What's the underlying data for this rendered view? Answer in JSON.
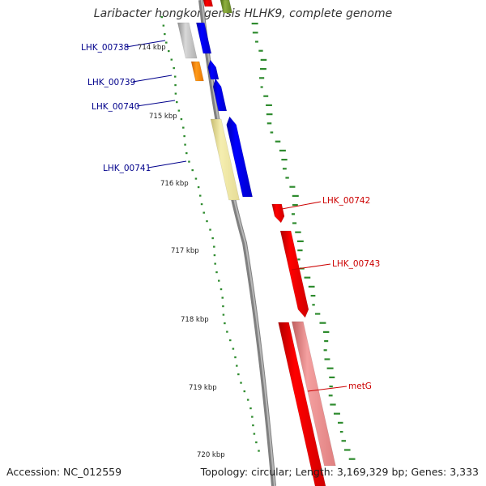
{
  "title": "Laribacter hongkongensis HLHK9, complete genome",
  "footer": {
    "accession": "Accession: NC_012559",
    "summary": "Topology: circular; Length: 3,169,329 bp; Genes: 3,333"
  },
  "colors": {
    "blue": "#0000ff",
    "red": "#ff0000",
    "pink": "#f08080",
    "yellow": "#f0e68c",
    "orange": "#ff8c00",
    "gray": "#c0c0c0",
    "olive": "#6b8e23",
    "dots": "#2e8b2e",
    "backbone": "#808080"
  },
  "scale_labels": [
    "714 kbp",
    "715 kbp",
    "716 kbp",
    "717 kbp",
    "718 kbp",
    "719 kbp",
    "720 kbp"
  ],
  "genes": [
    {
      "id": "LHK_00738",
      "label": "LHK_00738",
      "color": "#00008b"
    },
    {
      "id": "LHK_00739",
      "label": "LHK_00739",
      "color": "#00008b"
    },
    {
      "id": "LHK_00740",
      "label": "LHK_00740",
      "color": "#00008b"
    },
    {
      "id": "LHK_00741",
      "label": "LHK_00741",
      "color": "#00008b"
    },
    {
      "id": "LHK_00742",
      "label": "LHK_00742",
      "color": "#cc0000"
    },
    {
      "id": "LHK_00743",
      "label": "LHK_00743",
      "color": "#cc0000"
    },
    {
      "id": "metG",
      "label": "metG",
      "color": "#cc0000"
    }
  ]
}
